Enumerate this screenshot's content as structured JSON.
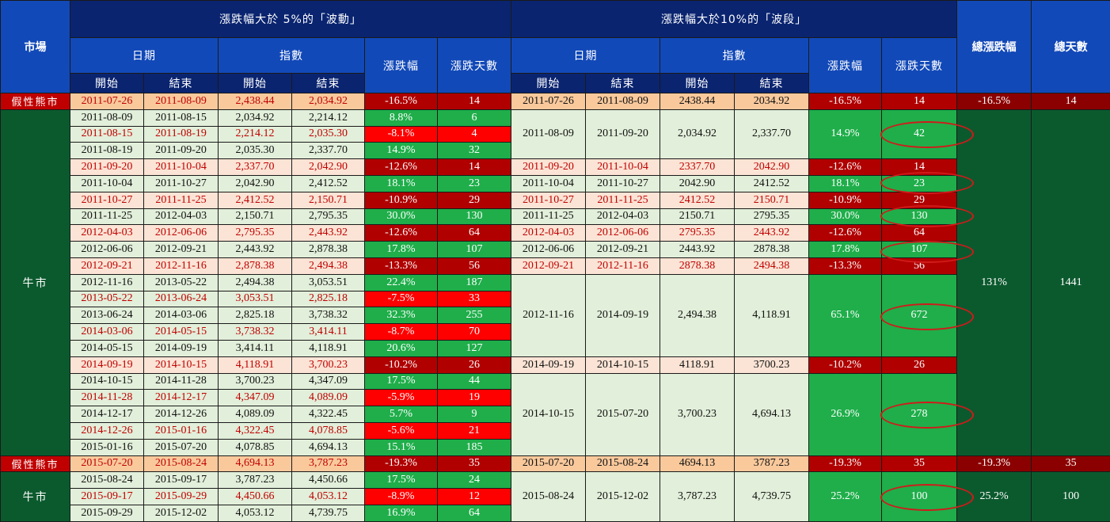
{
  "headers": {
    "market": "市場",
    "group5": "漲跌幅大於 5%的「波動」",
    "group10": "漲跌幅大於10%的「波段」",
    "date": "日期",
    "index": "指數",
    "change": "漲跌幅",
    "days": "漲跌天數",
    "start": "開始",
    "end": "結束",
    "total_change": "總漲跌幅",
    "total_days": "總天數"
  },
  "markets": {
    "bear": "假性熊市",
    "bull": "牛市"
  },
  "rows": [
    {
      "start": "2011-07-26",
      "end": "2011-08-09",
      "idx_start": "2,438.44",
      "idx_end": "2,034.92",
      "chg": "-16.5%",
      "days": "14"
    },
    {
      "start": "2011-08-09",
      "end": "2011-08-15",
      "idx_start": "2,034.92",
      "idx_end": "2,214.12",
      "chg": "8.8%",
      "days": "6"
    },
    {
      "start": "2011-08-15",
      "end": "2011-08-19",
      "idx_start": "2,214.12",
      "idx_end": "2,035.30",
      "chg": "-8.1%",
      "days": "4"
    },
    {
      "start": "2011-08-19",
      "end": "2011-09-20",
      "idx_start": "2,035.30",
      "idx_end": "2,337.70",
      "chg": "14.9%",
      "days": "32"
    },
    {
      "start": "2011-09-20",
      "end": "2011-10-04",
      "idx_start": "2,337.70",
      "idx_end": "2,042.90",
      "chg": "-12.6%",
      "days": "14"
    },
    {
      "start": "2011-10-04",
      "end": "2011-10-27",
      "idx_start": "2,042.90",
      "idx_end": "2,412.52",
      "chg": "18.1%",
      "days": "23"
    },
    {
      "start": "2011-10-27",
      "end": "2011-11-25",
      "idx_start": "2,412.52",
      "idx_end": "2,150.71",
      "chg": "-10.9%",
      "days": "29"
    },
    {
      "start": "2011-11-25",
      "end": "2012-04-03",
      "idx_start": "2,150.71",
      "idx_end": "2,795.35",
      "chg": "30.0%",
      "days": "130"
    },
    {
      "start": "2012-04-03",
      "end": "2012-06-06",
      "idx_start": "2,795.35",
      "idx_end": "2,443.92",
      "chg": "-12.6%",
      "days": "64"
    },
    {
      "start": "2012-06-06",
      "end": "2012-09-21",
      "idx_start": "2,443.92",
      "idx_end": "2,878.38",
      "chg": "17.8%",
      "days": "107"
    },
    {
      "start": "2012-09-21",
      "end": "2012-11-16",
      "idx_start": "2,878.38",
      "idx_end": "2,494.38",
      "chg": "-13.3%",
      "days": "56"
    },
    {
      "start": "2012-11-16",
      "end": "2013-05-22",
      "idx_start": "2,494.38",
      "idx_end": "3,053.51",
      "chg": "22.4%",
      "days": "187"
    },
    {
      "start": "2013-05-22",
      "end": "2013-06-24",
      "idx_start": "3,053.51",
      "idx_end": "2,825.18",
      "chg": "-7.5%",
      "days": "33"
    },
    {
      "start": "2013-06-24",
      "end": "2014-03-06",
      "idx_start": "2,825.18",
      "idx_end": "3,738.32",
      "chg": "32.3%",
      "days": "255"
    },
    {
      "start": "2014-03-06",
      "end": "2014-05-15",
      "idx_start": "3,738.32",
      "idx_end": "3,414.11",
      "chg": "-8.7%",
      "days": "70"
    },
    {
      "start": "2014-05-15",
      "end": "2014-09-19",
      "idx_start": "3,414.11",
      "idx_end": "4,118.91",
      "chg": "20.6%",
      "days": "127"
    },
    {
      "start": "2014-09-19",
      "end": "2014-10-15",
      "idx_start": "4,118.91",
      "idx_end": "3,700.23",
      "chg": "-10.2%",
      "days": "26"
    },
    {
      "start": "2014-10-15",
      "end": "2014-11-28",
      "idx_start": "3,700.23",
      "idx_end": "4,347.09",
      "chg": "17.5%",
      "days": "44"
    },
    {
      "start": "2014-11-28",
      "end": "2014-12-17",
      "idx_start": "4,347.09",
      "idx_end": "4,089.09",
      "chg": "-5.9%",
      "days": "19"
    },
    {
      "start": "2014-12-17",
      "end": "2014-12-26",
      "idx_start": "4,089.09",
      "idx_end": "4,322.45",
      "chg": "5.7%",
      "days": "9"
    },
    {
      "start": "2014-12-26",
      "end": "2015-01-16",
      "idx_start": "4,322.45",
      "idx_end": "4,078.85",
      "chg": "-5.6%",
      "days": "21"
    },
    {
      "start": "2015-01-16",
      "end": "2015-07-20",
      "idx_start": "4,078.85",
      "idx_end": "4,694.13",
      "chg": "15.1%",
      "days": "185"
    },
    {
      "start": "2015-07-20",
      "end": "2015-08-24",
      "idx_start": "4,694.13",
      "idx_end": "3,787.23",
      "chg": "-19.3%",
      "days": "35"
    },
    {
      "start": "2015-08-24",
      "end": "2015-09-17",
      "idx_start": "3,787.23",
      "idx_end": "4,450.66",
      "chg": "17.5%",
      "days": "24"
    },
    {
      "start": "2015-09-17",
      "end": "2015-09-29",
      "idx_start": "4,450.66",
      "idx_end": "4,053.12",
      "chg": "-8.9%",
      "days": "12"
    },
    {
      "start": "2015-09-29",
      "end": "2015-12-02",
      "idx_start": "4,053.12",
      "idx_end": "4,739.75",
      "chg": "16.9%",
      "days": "64"
    }
  ],
  "waves": [
    {
      "start": "2011-07-26",
      "end": "2011-08-09",
      "idx_start": "2438.44",
      "idx_end": "2034.92",
      "chg": "-16.5%",
      "days": "14"
    },
    {
      "start": "2011-08-09",
      "end": "2011-09-20",
      "idx_start": "2,034.92",
      "idx_end": "2,337.70",
      "chg": "14.9%",
      "days": "42"
    },
    {
      "start": "2011-09-20",
      "end": "2011-10-04",
      "idx_start": "2337.70",
      "idx_end": "2042.90",
      "chg": "-12.6%",
      "days": "14"
    },
    {
      "start": "2011-10-04",
      "end": "2011-10-27",
      "idx_start": "2042.90",
      "idx_end": "2412.52",
      "chg": "18.1%",
      "days": "23"
    },
    {
      "start": "2011-10-27",
      "end": "2011-11-25",
      "idx_start": "2412.52",
      "idx_end": "2150.71",
      "chg": "-10.9%",
      "days": "29"
    },
    {
      "start": "2011-11-25",
      "end": "2012-04-03",
      "idx_start": "2150.71",
      "idx_end": "2795.35",
      "chg": "30.0%",
      "days": "130"
    },
    {
      "start": "2012-04-03",
      "end": "2012-06-06",
      "idx_start": "2795.35",
      "idx_end": "2443.92",
      "chg": "-12.6%",
      "days": "64"
    },
    {
      "start": "2012-06-06",
      "end": "2012-09-21",
      "idx_start": "2443.92",
      "idx_end": "2878.38",
      "chg": "17.8%",
      "days": "107"
    },
    {
      "start": "2012-09-21",
      "end": "2012-11-16",
      "idx_start": "2878.38",
      "idx_end": "2494.38",
      "chg": "-13.3%",
      "days": "56"
    },
    {
      "start": "2012-11-16",
      "end": "2014-09-19",
      "idx_start": "2,494.38",
      "idx_end": "4,118.91",
      "chg": "65.1%",
      "days": "672"
    },
    {
      "start": "2014-09-19",
      "end": "2014-10-15",
      "idx_start": "4118.91",
      "idx_end": "3700.23",
      "chg": "-10.2%",
      "days": "26"
    },
    {
      "start": "2014-10-15",
      "end": "2015-07-20",
      "idx_start": "3,700.23",
      "idx_end": "4,694.13",
      "chg": "26.9%",
      "days": "278"
    },
    {
      "start": "2015-07-20",
      "end": "2015-08-24",
      "idx_start": "4694.13",
      "idx_end": "3787.23",
      "chg": "-19.3%",
      "days": "35"
    },
    {
      "start": "2015-08-24",
      "end": "2015-12-02",
      "idx_start": "3,787.23",
      "idx_end": "4,739.75",
      "chg": "25.2%",
      "days": "100"
    }
  ],
  "totals": [
    {
      "chg": "-16.5%",
      "days": "14"
    },
    {
      "chg": "131%",
      "days": "1441"
    },
    {
      "chg": "-19.3%",
      "days": "35"
    },
    {
      "chg": "25.2%",
      "days": "100"
    }
  ],
  "colors": {
    "header_dark": "#0a2470",
    "header_blue": "#1249b8",
    "bear_red": "#c00000",
    "bull_green": "#0b5a2e",
    "up_green": "#1fae4a",
    "down_red": "#ff0000",
    "wave_down_red": "#b00000",
    "highlight_oval": "#d11a1a"
  }
}
